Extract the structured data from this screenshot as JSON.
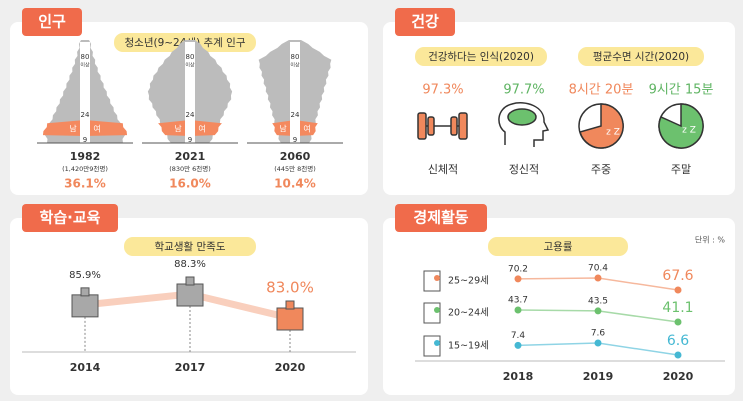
{
  "population": {
    "tab": "인구",
    "subtitle": "청소년(9~24세) 추계 인구",
    "age_top": "80",
    "age_top_sub": "이상",
    "age_mid": "24",
    "age_low": "9",
    "male": "남",
    "female": "여",
    "pyramids": [
      {
        "year": "1982",
        "total": "(1,420만9천명)",
        "share": "36.1%"
      },
      {
        "year": "2021",
        "total": "(830만 6천명)",
        "share": "16.0%"
      },
      {
        "year": "2060",
        "total": "(445만 8천명)",
        "share": "10.4%"
      }
    ]
  },
  "health": {
    "tab": "건강",
    "perception_title": "건강하다는 인식(2020)",
    "physical_value": "97.3%",
    "mental_value": "97.7%",
    "physical": "신체적",
    "mental": "정신적",
    "sleep_title": "평균수면 시간(2020)",
    "weekday_value": "8시간 20분",
    "weekend_value": "9시간 15분",
    "weekday": "주중",
    "weekend": "주말"
  },
  "education": {
    "tab": "학습·교육",
    "subtitle": "학교생활 만족도",
    "categories": [
      "2014",
      "2017",
      "2020"
    ],
    "values": [
      85.9,
      88.3,
      83.0
    ],
    "value_labels": [
      "85.9%",
      "88.3%",
      "83.0%"
    ]
  },
  "employment": {
    "tab": "경제활동",
    "subtitle": "고용률",
    "unit": "단위 : %",
    "categories": [
      "2018",
      "2019",
      "2020"
    ],
    "series": [
      {
        "name": "25~29세",
        "color": "#f0885c",
        "values": [
          70.2,
          70.4,
          67.6
        ]
      },
      {
        "name": "20~24세",
        "color": "#6cc16e",
        "values": [
          43.7,
          43.5,
          41.1
        ]
      },
      {
        "name": "15~19세",
        "color": "#45b8d3",
        "values": [
          7.4,
          7.6,
          6.6
        ]
      }
    ]
  }
}
